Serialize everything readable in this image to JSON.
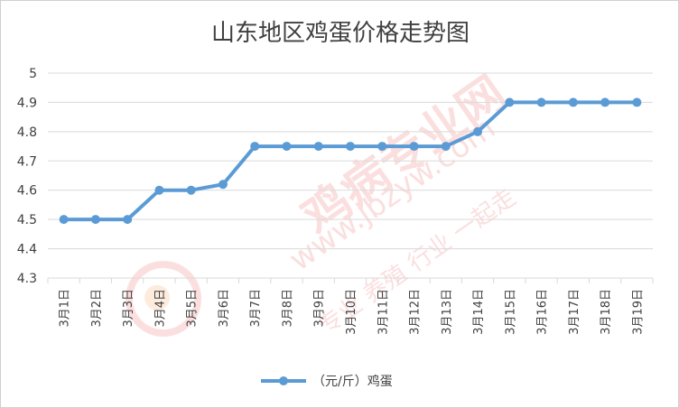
{
  "chart_data": {
    "type": "line",
    "title": "山东地区鸡蛋价格走势图",
    "categories": [
      "3月1日",
      "3月2日",
      "3月3日",
      "3月4日",
      "3月5日",
      "3月6日",
      "3月7日",
      "3月8日",
      "3月9日",
      "3月10日",
      "3月11日",
      "3月12日",
      "3月13日",
      "3月14日",
      "3月15日",
      "3月16日",
      "3月17日",
      "3月18日",
      "3月19日"
    ],
    "series": [
      {
        "name": "（元/斤）鸡蛋",
        "values": [
          4.5,
          4.5,
          4.5,
          4.6,
          4.6,
          4.62,
          4.75,
          4.75,
          4.75,
          4.75,
          4.75,
          4.75,
          4.75,
          4.8,
          4.9,
          4.9,
          4.9,
          4.9,
          4.9
        ],
        "color": "#5b9bd5"
      }
    ],
    "yticks": [
      "4.3",
      "4.4",
      "4.5",
      "4.6",
      "4.7",
      "4.8",
      "4.9",
      "5"
    ],
    "ylim": [
      4.3,
      5.0
    ],
    "grid": true,
    "legend": "bottom",
    "xlabel": "",
    "ylabel": ""
  },
  "watermark": {
    "brand": "鸡病专业网",
    "url": "www.jbzyw.com",
    "slogan": "专业 养殖 行业 一起走"
  },
  "colors": {
    "line": "#5b9bd5",
    "grid": "#d9d9d9",
    "text": "#404040",
    "watermark": "#f4a3a3"
  }
}
